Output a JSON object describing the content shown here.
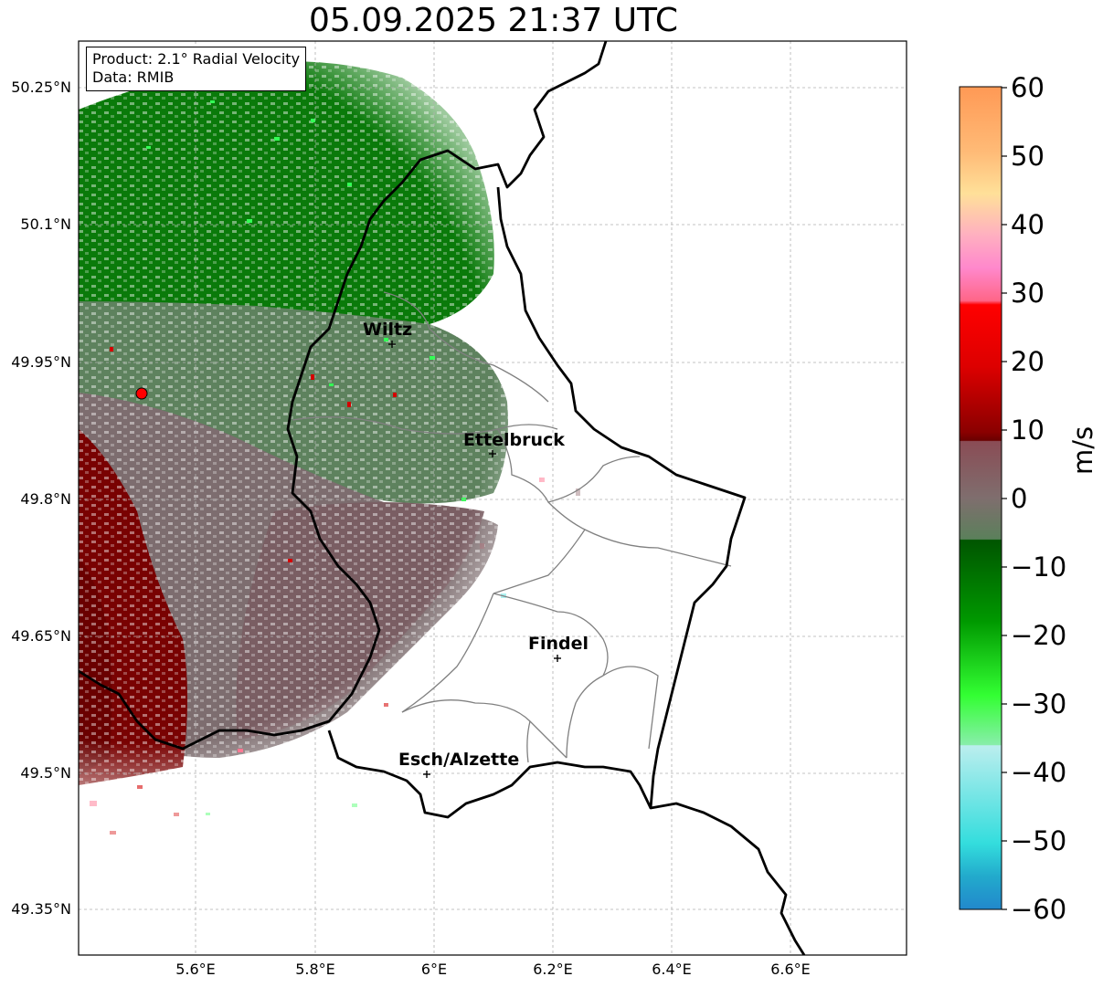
{
  "title": "05.09.2025 21:37 UTC",
  "info": {
    "product": "Product: 2.1° Radial Velocity",
    "source": "Data: RMIB"
  },
  "axes": {
    "lat_ticks": [
      "50.25°N",
      "50.1°N",
      "49.95°N",
      "49.8°N",
      "49.65°N",
      "49.5°N",
      "49.35°N"
    ],
    "lon_ticks": [
      "5.6°E",
      "5.8°E",
      "6°E",
      "6.2°E",
      "6.4°E",
      "6.6°E"
    ]
  },
  "cities": [
    {
      "name": "Wiltz",
      "lon": 5.93,
      "lat": 49.97
    },
    {
      "name": "Ettelbruck",
      "lon": 6.1,
      "lat": 49.85
    },
    {
      "name": "Findel",
      "lon": 6.21,
      "lat": 49.63
    },
    {
      "name": "Esch/Alzette",
      "lon": 5.99,
      "lat": 49.5
    }
  ],
  "radar": {
    "lon": 5.505,
    "lat": 49.915,
    "marker_color": "#ff0000"
  },
  "colorbar": {
    "unit": "m/s",
    "ticks": [
      "60",
      "50",
      "40",
      "30",
      "20",
      "10",
      "0",
      "−10",
      "−20",
      "−30",
      "−40",
      "−50",
      "−60"
    ],
    "range": [
      -60,
      60
    ]
  },
  "colors": {
    "outbound_strong": "#780000",
    "outbound": "#c80000",
    "near_zero": "#7f6e6e",
    "near_zero_green": "#5b805b",
    "inbound": "#006e00",
    "inbound_bright": "#33ff55",
    "border": "#000000",
    "canton": "#808080"
  }
}
